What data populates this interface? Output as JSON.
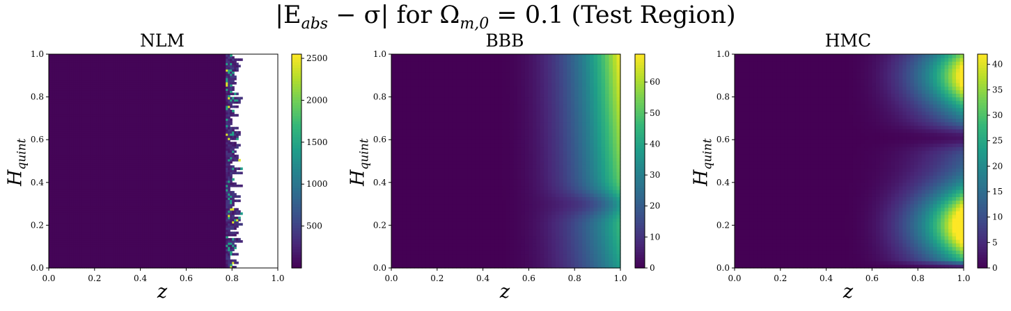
{
  "figure": {
    "suptitle_parts": [
      "|E",
      "abs",
      " − σ| for Ω",
      "m,0",
      " = 0.1 (Test Region)"
    ]
  },
  "colors": {
    "viridis": [
      "#440154",
      "#482878",
      "#3e4a89",
      "#31688e",
      "#26828e",
      "#1f9e89",
      "#35b779",
      "#6ece58",
      "#b5de2b",
      "#fde725"
    ]
  },
  "chart_data": [
    {
      "type": "heatmap",
      "title": "NLM",
      "xlabel": "z",
      "ylabel": "H",
      "ylabel_sub": "quint",
      "xlim": [
        0,
        1
      ],
      "ylim": [
        0,
        1
      ],
      "xticks": [
        "0.0",
        "0.2",
        "0.4",
        "0.6",
        "0.8",
        "1.0"
      ],
      "yticks": [
        "0.0",
        "0.2",
        "0.4",
        "0.6",
        "0.8",
        "1.0"
      ],
      "colorbar": {
        "min": 0,
        "max": 2550,
        "ticks": [
          500,
          1000,
          1500,
          2000,
          2500
        ]
      },
      "description_field": "values near 0 for z < 0.78; sparse spikes up to ~2500 at z ≈ 0.78–0.85; blank (NaN) for z > 0.85"
    },
    {
      "type": "heatmap",
      "title": "BBB",
      "xlabel": "z",
      "ylabel": "H",
      "ylabel_sub": "quint",
      "xlim": [
        0,
        1
      ],
      "ylim": [
        0,
        1
      ],
      "xticks": [
        "0.0",
        "0.2",
        "0.4",
        "0.6",
        "0.8",
        "1.0"
      ],
      "yticks": [
        "0.0",
        "0.2",
        "0.4",
        "0.6",
        "0.8",
        "1.0"
      ],
      "colorbar": {
        "min": 0,
        "max": 69,
        "ticks": [
          0,
          10,
          20,
          30,
          40,
          50,
          60
        ]
      },
      "description_field": "error grows with z, maximum ~69 at z=1, H=1; minimum valley near H≈0.3"
    },
    {
      "type": "heatmap",
      "title": "HMC",
      "xlabel": "z",
      "ylabel": "H",
      "ylabel_sub": "quint",
      "xlim": [
        0,
        1
      ],
      "ylim": [
        0,
        1
      ],
      "xticks": [
        "0.0",
        "0.2",
        "0.4",
        "0.6",
        "0.8",
        "1.0"
      ],
      "yticks": [
        "0.0",
        "0.2",
        "0.4",
        "0.6",
        "0.8",
        "1.0"
      ],
      "colorbar": {
        "min": 0,
        "max": 42,
        "ticks": [
          0,
          5,
          10,
          15,
          20,
          25,
          30,
          35,
          40
        ]
      },
      "description_field": "error grows with z, maxima ~42 at z=1 near H≈0.2 and H≈0.9; valley near H≈0.6"
    }
  ]
}
